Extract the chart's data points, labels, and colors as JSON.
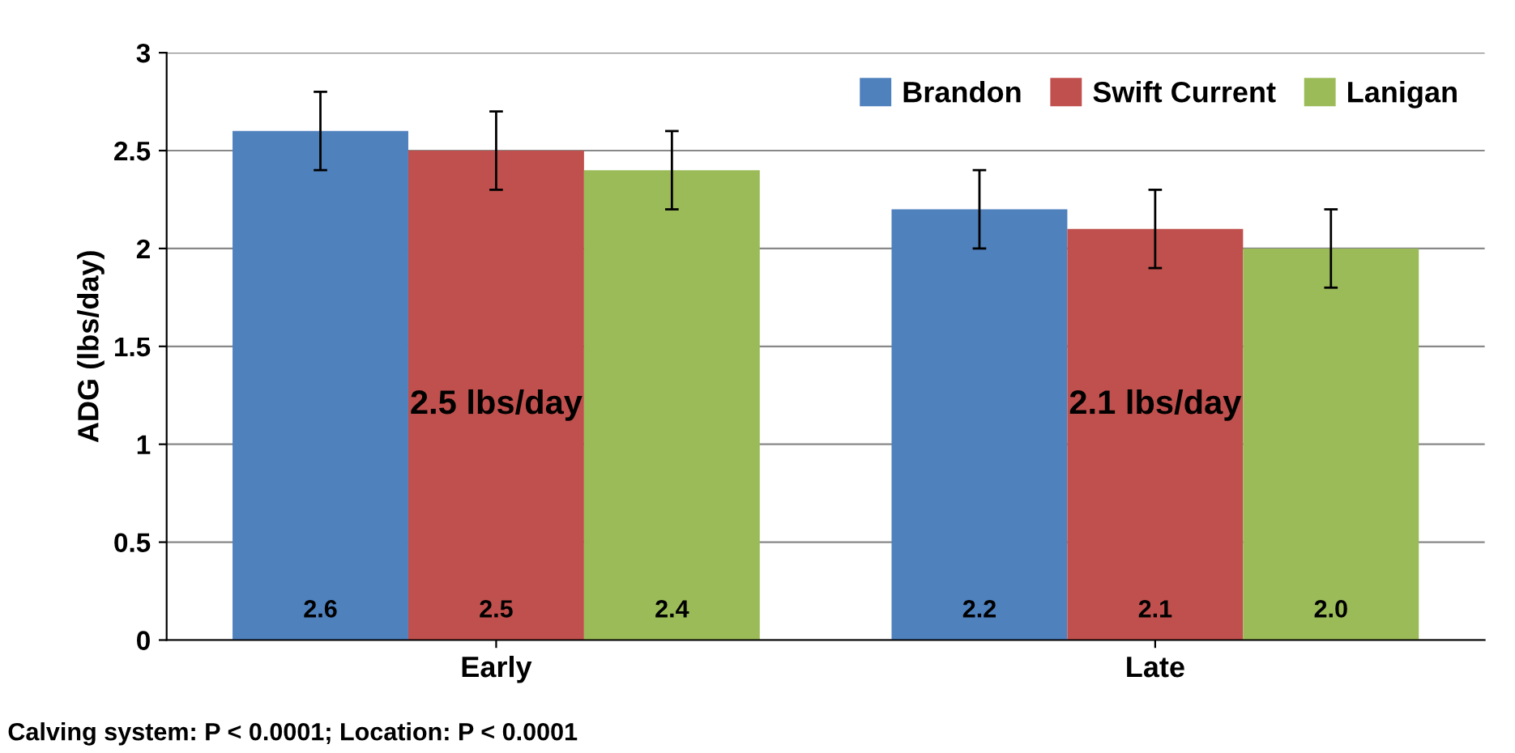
{
  "chart_data": {
    "type": "bar",
    "ylabel": "ADG (lbs/day)",
    "categories": [
      "Early",
      "Late"
    ],
    "series": [
      {
        "name": "Brandon",
        "color": "#4f81bd",
        "values": [
          2.6,
          2.2
        ],
        "errors": [
          0.2,
          0.2
        ],
        "value_labels": [
          "2.6",
          "2.2"
        ]
      },
      {
        "name": "Swift Current",
        "color": "#c0504d",
        "values": [
          2.5,
          2.1
        ],
        "errors": [
          0.2,
          0.2
        ],
        "value_labels": [
          "2.5",
          "2.1"
        ]
      },
      {
        "name": "Lanigan",
        "color": "#9bbb59",
        "values": [
          2.4,
          2.0
        ],
        "errors": [
          0.2,
          0.2
        ],
        "value_labels": [
          "2.4",
          "2.0"
        ]
      }
    ],
    "ylim": [
      0,
      3
    ],
    "yticks": [
      0,
      0.5,
      1,
      1.5,
      2,
      2.5,
      3
    ],
    "grid": "y",
    "legend": "top right",
    "annotations": [
      "2.5 lbs/day",
      "2.1 lbs/day",
      "Calving system: P < 0.0001; Location: P < 0.0001"
    ]
  }
}
